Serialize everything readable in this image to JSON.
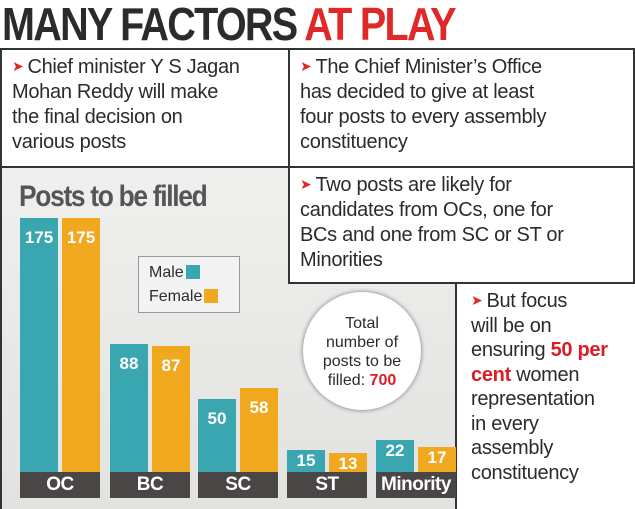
{
  "title": {
    "part1": "MANY FACTORS",
    "part2": "AT PLAY"
  },
  "bullets": [
    {
      "lines": [
        "Chief minister Y S Jagan",
        "Mohan Reddy will make",
        "the final decision on",
        "various posts"
      ]
    },
    {
      "lines": [
        "The Chief Minister’s Office",
        "has decided to give at least",
        "four posts to every assembly",
        "constituency"
      ]
    },
    {
      "lines": [
        "Two posts are likely for",
        "candidates from OCs, one for",
        "BCs and one from SC or ST or",
        "Minorities"
      ]
    },
    {
      "lines": [
        "But focus",
        "will be on"
      ],
      "highlight_pre": "ensuring ",
      "highlight": "50 per",
      "highlight2": "cent",
      "after": " women",
      "rest": [
        "representation",
        "in every",
        "assembly",
        "constituency"
      ]
    }
  ],
  "arrow_icon": "➤",
  "total": {
    "lines": [
      "Total",
      "number of",
      "posts to be"
    ],
    "label": "filled: ",
    "value": "700"
  },
  "colors": {
    "male": "#3aa7b0",
    "female": "#f0a81e",
    "accent": "#e02828"
  },
  "chart_data": {
    "type": "bar",
    "title": "Posts to be filled",
    "categories": [
      "OC",
      "BC",
      "SC",
      "ST",
      "Minority"
    ],
    "series": [
      {
        "name": "Male",
        "values": [
          175,
          88,
          50,
          15,
          22
        ]
      },
      {
        "name": "Female",
        "values": [
          175,
          87,
          58,
          13,
          17
        ]
      }
    ],
    "legend": "top-center",
    "grid": false,
    "ylim": [
      0,
      175
    ]
  }
}
